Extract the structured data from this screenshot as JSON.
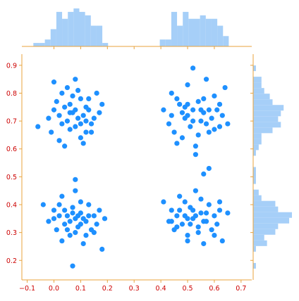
{
  "chart_data": {
    "type": "scatter",
    "title": "",
    "xlabel": "",
    "ylabel": "",
    "xlim": [
      -0.12,
      0.74
    ],
    "ylim": [
      0.13,
      0.94
    ],
    "x_ticks": [
      "−0.1",
      "0.0",
      "0.1",
      "0.2",
      "0.3",
      "0.4",
      "0.5",
      "0.6",
      "0.7"
    ],
    "x_tick_values": [
      -0.1,
      0.0,
      0.1,
      0.2,
      0.3,
      0.4,
      0.5,
      0.6,
      0.7
    ],
    "y_ticks": [
      "0.2",
      "0.3",
      "0.4",
      "0.5",
      "0.6",
      "0.7",
      "0.8",
      "0.9"
    ],
    "y_tick_values": [
      0.2,
      0.3,
      0.4,
      0.5,
      0.6,
      0.7,
      0.8,
      0.9
    ],
    "grid": false,
    "legend": "none",
    "marginal_histograms": {
      "top": "x distribution",
      "right": "y distribution"
    },
    "colors": {
      "points": "#1e90ff",
      "hist": "#a6cff8",
      "frame": "#e8a33d",
      "tick_labels": "#cc0000"
    },
    "clusters": [
      {
        "x_center": 0.08,
        "y_center": 0.72,
        "x_spread": 0.04,
        "y_spread": 0.045
      },
      {
        "x_center": 0.53,
        "y_center": 0.725,
        "x_spread": 0.04,
        "y_spread": 0.045
      },
      {
        "x_center": 0.085,
        "y_center": 0.355,
        "x_spread": 0.04,
        "y_spread": 0.045
      },
      {
        "x_center": 0.53,
        "y_center": 0.36,
        "x_spread": 0.04,
        "y_spread": 0.045
      }
    ],
    "series": [
      {
        "points": [
          [
            -0.06,
            0.68
          ],
          [
            0.0,
            0.84
          ],
          [
            0.02,
            0.63
          ],
          [
            0.03,
            0.69
          ],
          [
            0.04,
            0.61
          ],
          [
            0.05,
            0.82
          ],
          [
            0.06,
            0.76
          ],
          [
            0.07,
            0.73
          ],
          [
            0.08,
            0.85
          ],
          [
            0.08,
            0.68
          ],
          [
            0.09,
            0.71
          ],
          [
            0.1,
            0.64
          ],
          [
            0.1,
            0.78
          ],
          [
            0.11,
            0.72
          ],
          [
            0.12,
            0.66
          ],
          [
            0.13,
            0.74
          ],
          [
            0.14,
            0.69
          ],
          [
            0.16,
            0.8
          ],
          [
            0.17,
            0.73
          ],
          [
            0.18,
            0.76
          ],
          [
            0.01,
            0.77
          ],
          [
            0.02,
            0.72
          ],
          [
            0.04,
            0.75
          ],
          [
            0.05,
            0.7
          ],
          [
            0.06,
            0.67
          ],
          [
            0.07,
            0.79
          ],
          [
            0.09,
            0.81
          ],
          [
            0.11,
            0.62
          ],
          [
            0.12,
            0.7
          ],
          [
            0.13,
            0.78
          ],
          [
            0.0,
            0.74
          ],
          [
            -0.02,
            0.71
          ],
          [
            0.03,
            0.8
          ],
          [
            0.14,
            0.66
          ],
          [
            0.15,
            0.71
          ],
          [
            -0.01,
            0.66
          ],
          [
            0.06,
            0.73
          ],
          [
            0.08,
            0.74
          ],
          [
            0.1,
            0.69
          ],
          [
            0.12,
            0.75
          ],
          [
            0.41,
            0.74
          ],
          [
            0.43,
            0.69
          ],
          [
            0.44,
            0.8
          ],
          [
            0.45,
            0.66
          ],
          [
            0.46,
            0.62
          ],
          [
            0.47,
            0.76
          ],
          [
            0.48,
            0.73
          ],
          [
            0.49,
            0.71
          ],
          [
            0.5,
            0.83
          ],
          [
            0.51,
            0.68
          ],
          [
            0.52,
            0.89
          ],
          [
            0.52,
            0.74
          ],
          [
            0.53,
            0.61
          ],
          [
            0.54,
            0.77
          ],
          [
            0.55,
            0.7
          ],
          [
            0.56,
            0.73
          ],
          [
            0.57,
            0.85
          ],
          [
            0.58,
            0.66
          ],
          [
            0.59,
            0.71
          ],
          [
            0.6,
            0.79
          ],
          [
            0.61,
            0.74
          ],
          [
            0.62,
            0.68
          ],
          [
            0.63,
            0.72
          ],
          [
            0.64,
            0.82
          ],
          [
            0.65,
            0.69
          ],
          [
            0.46,
            0.78
          ],
          [
            0.48,
            0.64
          ],
          [
            0.5,
            0.76
          ],
          [
            0.52,
            0.7
          ],
          [
            0.54,
            0.65
          ],
          [
            0.56,
            0.78
          ],
          [
            0.58,
            0.74
          ],
          [
            0.6,
            0.67
          ],
          [
            0.5,
            0.72
          ],
          [
            0.53,
            0.58
          ],
          [
            0.49,
            0.75
          ],
          [
            0.55,
            0.74
          ],
          [
            0.57,
            0.69
          ],
          [
            0.44,
            0.72
          ],
          [
            0.62,
            0.76
          ],
          [
            -0.04,
            0.4
          ],
          [
            -0.02,
            0.34
          ],
          [
            0.0,
            0.38
          ],
          [
            0.01,
            0.31
          ],
          [
            0.02,
            0.36
          ],
          [
            0.03,
            0.43
          ],
          [
            0.04,
            0.33
          ],
          [
            0.05,
            0.36
          ],
          [
            0.06,
            0.29
          ],
          [
            0.07,
            0.39
          ],
          [
            0.07,
            0.18
          ],
          [
            0.08,
            0.35
          ],
          [
            0.08,
            0.45
          ],
          [
            0.09,
            0.32
          ],
          [
            0.1,
            0.37
          ],
          [
            0.11,
            0.26
          ],
          [
            0.12,
            0.34
          ],
          [
            0.13,
            0.4
          ],
          [
            0.14,
            0.31
          ],
          [
            0.15,
            0.36
          ],
          [
            0.16,
            0.33
          ],
          [
            0.17,
            0.38
          ],
          [
            0.18,
            0.24
          ],
          [
            0.19,
            0.35
          ],
          [
            0.08,
            0.49
          ],
          [
            0.04,
            0.38
          ],
          [
            0.06,
            0.34
          ],
          [
            0.1,
            0.41
          ],
          [
            0.12,
            0.29
          ],
          [
            0.02,
            0.4
          ],
          [
            0.09,
            0.36
          ],
          [
            0.11,
            0.35
          ],
          [
            0.05,
            0.31
          ],
          [
            0.13,
            0.36
          ],
          [
            0.07,
            0.37
          ],
          [
            0.0,
            0.35
          ],
          [
            0.15,
            0.3
          ],
          [
            0.03,
            0.27
          ],
          [
            0.1,
            0.33
          ],
          [
            0.08,
            0.3
          ],
          [
            0.41,
            0.41
          ],
          [
            0.43,
            0.34
          ],
          [
            0.44,
            0.38
          ],
          [
            0.45,
            0.31
          ],
          [
            0.46,
            0.36
          ],
          [
            0.47,
            0.43
          ],
          [
            0.48,
            0.33
          ],
          [
            0.49,
            0.36
          ],
          [
            0.5,
            0.29
          ],
          [
            0.51,
            0.39
          ],
          [
            0.52,
            0.35
          ],
          [
            0.53,
            0.45
          ],
          [
            0.54,
            0.32
          ],
          [
            0.55,
            0.37
          ],
          [
            0.56,
            0.26
          ],
          [
            0.57,
            0.34
          ],
          [
            0.58,
            0.4
          ],
          [
            0.59,
            0.31
          ],
          [
            0.6,
            0.36
          ],
          [
            0.61,
            0.33
          ],
          [
            0.62,
            0.38
          ],
          [
            0.63,
            0.27
          ],
          [
            0.65,
            0.37
          ],
          [
            0.58,
            0.53
          ],
          [
            0.56,
            0.51
          ],
          [
            0.5,
            0.35
          ],
          [
            0.52,
            0.38
          ],
          [
            0.54,
            0.3
          ],
          [
            0.49,
            0.41
          ],
          [
            0.55,
            0.42
          ],
          [
            0.53,
            0.36
          ],
          [
            0.51,
            0.33
          ],
          [
            0.57,
            0.37
          ],
          [
            0.47,
            0.38
          ],
          [
            0.6,
            0.29
          ],
          [
            0.44,
            0.34
          ],
          [
            0.62,
            0.41
          ],
          [
            0.5,
            0.27
          ],
          [
            0.46,
            0.32
          ],
          [
            0.56,
            0.34
          ]
        ]
      }
    ]
  }
}
